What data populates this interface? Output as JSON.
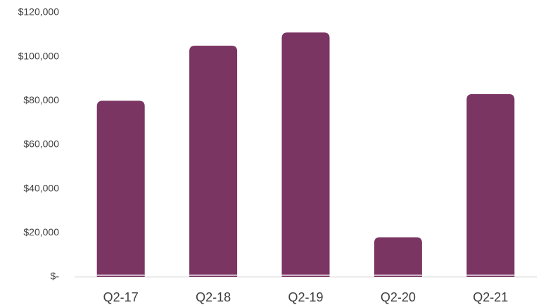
{
  "chart_data": {
    "type": "bar",
    "categories": [
      "Q2-17",
      "Q2-18",
      "Q2-19",
      "Q2-20",
      "Q2-21"
    ],
    "values": [
      80000,
      105000,
      111000,
      18000,
      83000
    ],
    "color": "#7b3563",
    "ylim": [
      0,
      120000
    ],
    "yticks": [
      {
        "value": 0,
        "label": "$-"
      },
      {
        "value": 20000,
        "label": "$20,000"
      },
      {
        "value": 40000,
        "label": "$40,000"
      },
      {
        "value": 60000,
        "label": "$60,000"
      },
      {
        "value": 80000,
        "label": "$80,000"
      },
      {
        "value": 100000,
        "label": "$100,000"
      },
      {
        "value": 120000,
        "label": "$120,000"
      }
    ],
    "grid": false
  }
}
